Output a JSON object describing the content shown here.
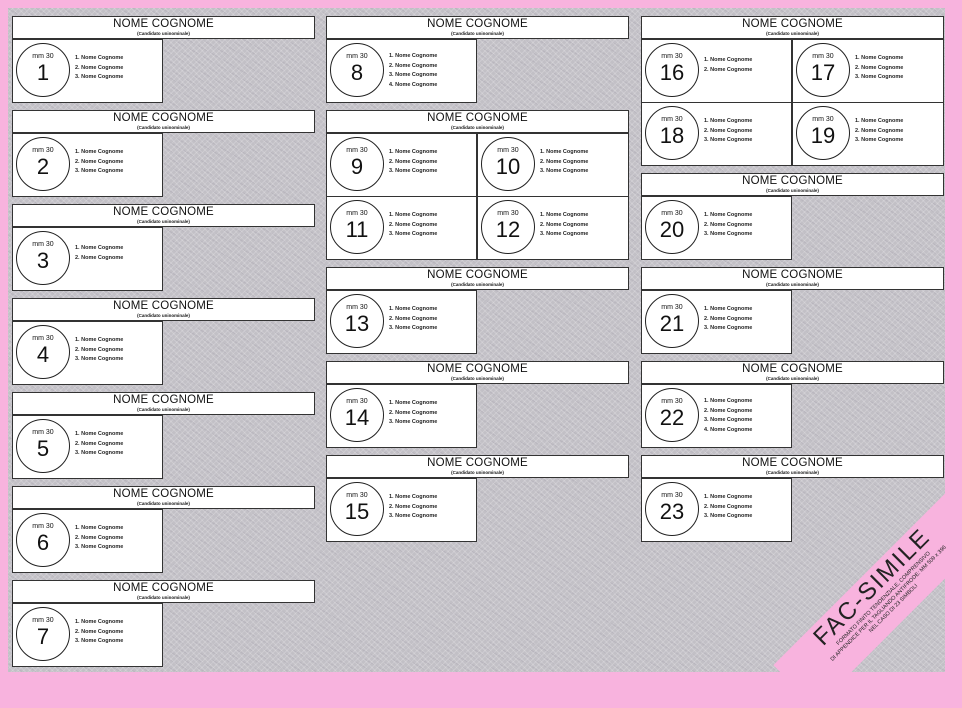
{
  "colors": {
    "background": "#f8b3de",
    "sheet": "#c2c0c6",
    "card": "#ffffff"
  },
  "blocks": [
    {
      "column": 1,
      "header": "NOME COGNOME",
      "subheader": "(Candidato uninominale)",
      "symbols": [
        {
          "size_label": "mm 30",
          "number": "1",
          "candidates": [
            "1. Nome Cognome",
            "2. Nome Cognome",
            "3. Nome Cognome"
          ]
        }
      ]
    },
    {
      "column": 1,
      "header": "NOME COGNOME",
      "subheader": "(Candidato uninominale)",
      "symbols": [
        {
          "size_label": "mm 30",
          "number": "2",
          "candidates": [
            "1. Nome Cognome",
            "2. Nome Cognome",
            "3. Nome Cognome"
          ]
        }
      ]
    },
    {
      "column": 1,
      "header": "NOME COGNOME",
      "subheader": "(Candidato uninominale)",
      "symbols": [
        {
          "size_label": "mm 30",
          "number": "3",
          "candidates": [
            "1. Nome Cognome",
            "2. Nome Cognome"
          ]
        }
      ]
    },
    {
      "column": 1,
      "header": "NOME COGNOME",
      "subheader": "(Candidato uninominale)",
      "symbols": [
        {
          "size_label": "mm 30",
          "number": "4",
          "candidates": [
            "1. Nome Cognome",
            "2. Nome Cognome",
            "3. Nome Cognome"
          ]
        }
      ]
    },
    {
      "column": 1,
      "header": "NOME COGNOME",
      "subheader": "(Candidato uninominale)",
      "symbols": [
        {
          "size_label": "mm 30",
          "number": "5",
          "candidates": [
            "1. Nome Cognome",
            "2. Nome Cognome",
            "3. Nome Cognome"
          ]
        }
      ]
    },
    {
      "column": 1,
      "header": "NOME COGNOME",
      "subheader": "(Candidato uninominale)",
      "symbols": [
        {
          "size_label": "mm 30",
          "number": "6",
          "candidates": [
            "1. Nome Cognome",
            "2. Nome Cognome",
            "3. Nome Cognome"
          ]
        }
      ]
    },
    {
      "column": 1,
      "header": "NOME COGNOME",
      "subheader": "(Candidato uninominale)",
      "symbols": [
        {
          "size_label": "mm 30",
          "number": "7",
          "candidates": [
            "1. Nome Cognome",
            "2. Nome Cognome",
            "3. Nome Cognome"
          ]
        }
      ]
    },
    {
      "column": 2,
      "header": "NOME COGNOME",
      "subheader": "(Candidato uninominale)",
      "symbols": [
        {
          "size_label": "mm 30",
          "number": "8",
          "candidates": [
            "1. Nome Cognome",
            "2. Nome Cognome",
            "3. Nome Cognome",
            "4. Nome Cognome"
          ]
        }
      ]
    },
    {
      "column": 2,
      "header": "NOME COGNOME",
      "subheader": "(Candidato uninominale)",
      "symbols": [
        {
          "size_label": "mm 30",
          "number": "9",
          "candidates": [
            "1. Nome Cognome",
            "2. Nome Cognome",
            "3. Nome Cognome"
          ]
        },
        {
          "size_label": "mm 30",
          "number": "10",
          "candidates": [
            "1. Nome Cognome",
            "2. Nome Cognome",
            "3. Nome Cognome"
          ]
        },
        {
          "size_label": "mm 30",
          "number": "11",
          "candidates": [
            "1. Nome Cognome",
            "2. Nome Cognome",
            "3. Nome Cognome"
          ]
        },
        {
          "size_label": "mm 30",
          "number": "12",
          "candidates": [
            "1. Nome Cognome",
            "2. Nome Cognome",
            "3. Nome Cognome"
          ]
        }
      ]
    },
    {
      "column": 2,
      "header": "NOME COGNOME",
      "subheader": "(Candidato uninominale)",
      "symbols": [
        {
          "size_label": "mm 30",
          "number": "13",
          "candidates": [
            "1. Nome Cognome",
            "2. Nome Cognome",
            "3. Nome Cognome"
          ]
        }
      ]
    },
    {
      "column": 2,
      "header": "NOME COGNOME",
      "subheader": "(Candidato uninominale)",
      "symbols": [
        {
          "size_label": "mm 30",
          "number": "14",
          "candidates": [
            "1. Nome Cognome",
            "2. Nome Cognome",
            "3. Nome Cognome"
          ]
        }
      ]
    },
    {
      "column": 2,
      "header": "NOME COGNOME",
      "subheader": "(Candidato uninominale)",
      "symbols": [
        {
          "size_label": "mm 30",
          "number": "15",
          "candidates": [
            "1. Nome Cognome",
            "2. Nome Cognome",
            "3. Nome Cognome"
          ]
        }
      ]
    },
    {
      "column": 3,
      "header": "NOME COGNOME",
      "subheader": "(Candidato uninominale)",
      "symbols": [
        {
          "size_label": "mm 30",
          "number": "16",
          "candidates": [
            "1. Nome Cognome",
            "2. Nome Cognome"
          ]
        },
        {
          "size_label": "mm 30",
          "number": "17",
          "candidates": [
            "1. Nome Cognome",
            "2. Nome Cognome",
            "3. Nome Cognome"
          ]
        },
        {
          "size_label": "mm 30",
          "number": "18",
          "candidates": [
            "1. Nome Cognome",
            "2. Nome Cognome",
            "3. Nome Cognome"
          ]
        },
        {
          "size_label": "mm 30",
          "number": "19",
          "candidates": [
            "1. Nome Cognome",
            "2. Nome Cognome",
            "3. Nome Cognome"
          ]
        }
      ]
    },
    {
      "column": 3,
      "header": "NOME COGNOME",
      "subheader": "(Candidato uninominale)",
      "symbols": [
        {
          "size_label": "mm 30",
          "number": "20",
          "candidates": [
            "1. Nome Cognome",
            "2. Nome Cognome",
            "3. Nome Cognome"
          ]
        }
      ]
    },
    {
      "column": 3,
      "header": "NOME COGNOME",
      "subheader": "(Candidato uninominale)",
      "symbols": [
        {
          "size_label": "mm 30",
          "number": "21",
          "candidates": [
            "1. Nome Cognome",
            "2. Nome Cognome",
            "3. Nome Cognome"
          ]
        }
      ]
    },
    {
      "column": 3,
      "header": "NOME COGNOME",
      "subheader": "(Candidato uninominale)",
      "symbols": [
        {
          "size_label": "mm 30",
          "number": "22",
          "candidates": [
            "1. Nome Cognome",
            "2. Nome Cognome",
            "3. Nome Cognome",
            "4. Nome Cognome"
          ]
        }
      ]
    },
    {
      "column": 3,
      "header": "NOME COGNOME",
      "subheader": "(Candidato uninominale)",
      "symbols": [
        {
          "size_label": "mm 30",
          "number": "23",
          "candidates": [
            "1. Nome Cognome",
            "2. Nome Cognome",
            "3. Nome Cognome"
          ]
        }
      ]
    }
  ],
  "watermark": {
    "title": "FAC-SIMILE",
    "lines": [
      "FORMATO FINITO TENDENZIALE, COMPRENSIVO",
      "DI APPENDICE PER IL TAGLIANDO ANTIFRODE: MM 509 x 396",
      "NEL CASO DI 23 SIMBOLI"
    ]
  }
}
